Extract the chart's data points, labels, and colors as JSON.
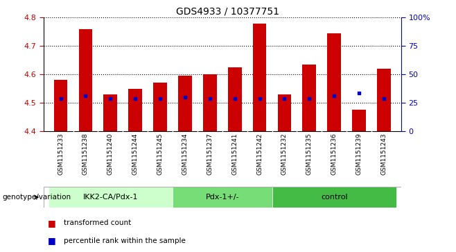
{
  "title": "GDS4933 / 10377751",
  "samples": [
    "GSM1151233",
    "GSM1151238",
    "GSM1151240",
    "GSM1151244",
    "GSM1151245",
    "GSM1151234",
    "GSM1151237",
    "GSM1151241",
    "GSM1151242",
    "GSM1151232",
    "GSM1151235",
    "GSM1151236",
    "GSM1151239",
    "GSM1151243"
  ],
  "red_values": [
    4.58,
    4.76,
    4.53,
    4.55,
    4.57,
    4.595,
    4.6,
    4.625,
    4.78,
    4.53,
    4.635,
    4.745,
    4.475,
    4.62
  ],
  "blue_values": [
    4.515,
    4.525,
    4.515,
    4.515,
    4.515,
    4.52,
    4.515,
    4.515,
    4.515,
    4.515,
    4.515,
    4.525,
    4.535,
    4.515
  ],
  "bar_bottom": 4.4,
  "groups": [
    {
      "label": "IKK2-CA/Pdx-1",
      "start": 0,
      "end": 5,
      "color": "#ccffcc"
    },
    {
      "label": "Pdx-1+/-",
      "start": 5,
      "end": 9,
      "color": "#77dd77"
    },
    {
      "label": "control",
      "start": 9,
      "end": 14,
      "color": "#44bb44"
    }
  ],
  "ylim_left": [
    4.4,
    4.8
  ],
  "ylim_right": [
    0,
    100
  ],
  "right_ticks": [
    0,
    25,
    50,
    75,
    100
  ],
  "right_tick_labels": [
    "0",
    "25",
    "50",
    "75",
    "100%"
  ],
  "left_ticks": [
    4.4,
    4.5,
    4.6,
    4.7,
    4.8
  ],
  "bar_color": "#cc0000",
  "dot_color": "#0000cc",
  "bar_width": 0.55,
  "genotype_label": "genotype/variation",
  "legend_red": "transformed count",
  "legend_blue": "percentile rank within the sample",
  "label_bg": "#d3d3d3",
  "plot_bg": "#ffffff",
  "left_tick_color": "#cc0000",
  "right_tick_color": "#0000cc"
}
